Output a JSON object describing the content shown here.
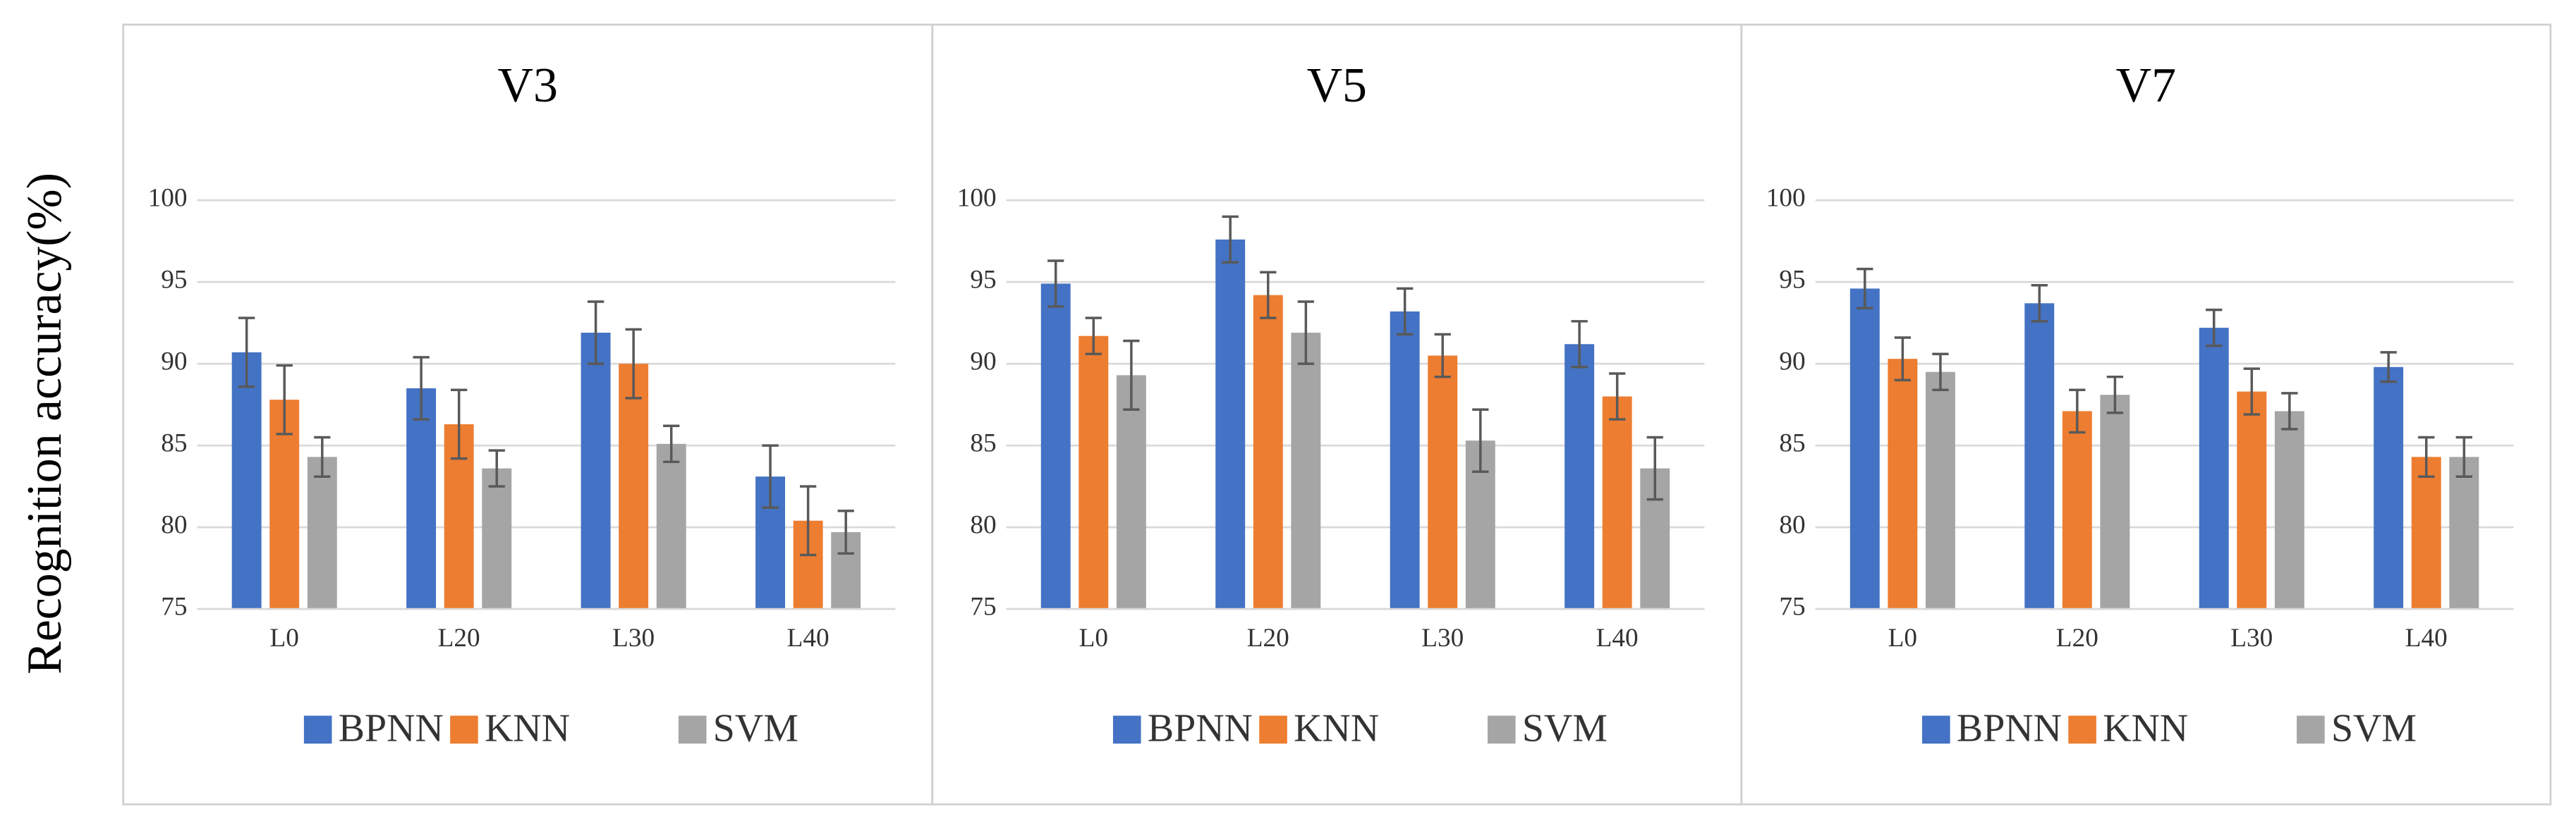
{
  "chart_data": [
    {
      "type": "bar",
      "title": "V3",
      "ylabel": "Recognition accuracy(%)",
      "categories": [
        "L0",
        "L20",
        "L30",
        "L40"
      ],
      "series": [
        {
          "name": "BPNN",
          "color": "#4472c4",
          "values": [
            90.7,
            88.5,
            91.9,
            83.1
          ],
          "errors": [
            2.1,
            1.9,
            1.9,
            1.9
          ]
        },
        {
          "name": "KNN",
          "color": "#ed7d31",
          "values": [
            87.8,
            86.3,
            90.0,
            80.4
          ],
          "errors": [
            2.1,
            2.1,
            2.1,
            2.1
          ]
        },
        {
          "name": "SVM",
          "color": "#a5a5a5",
          "values": [
            84.3,
            83.6,
            85.1,
            79.7
          ],
          "errors": [
            1.2,
            1.1,
            1.1,
            1.3
          ]
        }
      ],
      "ylim": [
        75,
        100
      ],
      "yticks": [
        75,
        80,
        85,
        90,
        95,
        100
      ],
      "grid": true
    },
    {
      "type": "bar",
      "title": "V5",
      "categories": [
        "L0",
        "L20",
        "L30",
        "L40"
      ],
      "series": [
        {
          "name": "BPNN",
          "color": "#4472c4",
          "values": [
            94.9,
            97.6,
            93.2,
            91.2
          ],
          "errors": [
            1.4,
            1.4,
            1.4,
            1.4
          ]
        },
        {
          "name": "KNN",
          "color": "#ed7d31",
          "values": [
            91.7,
            94.2,
            90.5,
            88.0
          ],
          "errors": [
            1.1,
            1.4,
            1.3,
            1.4
          ]
        },
        {
          "name": "SVM",
          "color": "#a5a5a5",
          "values": [
            89.3,
            91.9,
            85.3,
            83.6
          ],
          "errors": [
            2.1,
            1.9,
            1.9,
            1.9
          ]
        }
      ],
      "ylim": [
        75,
        100
      ],
      "yticks": [
        75,
        80,
        85,
        90,
        95,
        100
      ],
      "grid": true
    },
    {
      "type": "bar",
      "title": "V7",
      "categories": [
        "L0",
        "L20",
        "L30",
        "L40"
      ],
      "series": [
        {
          "name": "BPNN",
          "color": "#4472c4",
          "values": [
            94.6,
            93.7,
            92.2,
            89.8
          ],
          "errors": [
            1.2,
            1.1,
            1.1,
            0.9
          ]
        },
        {
          "name": "KNN",
          "color": "#ed7d31",
          "values": [
            90.3,
            87.1,
            88.3,
            84.3
          ],
          "errors": [
            1.3,
            1.3,
            1.4,
            1.2
          ]
        },
        {
          "name": "SVM",
          "color": "#a5a5a5",
          "values": [
            89.5,
            88.1,
            87.1,
            84.3
          ],
          "errors": [
            1.1,
            1.1,
            1.1,
            1.2
          ]
        }
      ],
      "ylim": [
        75,
        100
      ],
      "yticks": [
        75,
        80,
        85,
        90,
        95,
        100
      ],
      "grid": true
    }
  ]
}
